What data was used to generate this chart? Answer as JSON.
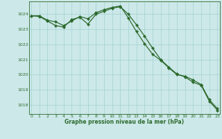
{
  "line1_x": [
    0,
    1,
    2,
    3,
    4,
    5,
    6,
    7,
    8,
    9,
    10,
    11,
    12,
    13,
    14,
    15,
    16,
    17,
    18,
    19,
    20,
    21,
    22,
    23
  ],
  "line1_y": [
    1023.9,
    1023.85,
    1023.55,
    1023.25,
    1023.15,
    1023.65,
    1023.8,
    1023.35,
    1024.0,
    1024.2,
    1024.4,
    1024.5,
    1024.0,
    1023.3,
    1022.55,
    1021.75,
    1021.0,
    1020.5,
    1020.05,
    1019.85,
    1019.5,
    1019.3,
    1018.25,
    1017.65
  ],
  "line2_x": [
    0,
    1,
    2,
    3,
    4,
    5,
    6,
    7,
    8,
    9,
    10,
    11,
    12,
    13,
    14,
    15,
    16,
    17,
    18,
    19,
    20,
    21,
    22,
    23
  ],
  "line2_y": [
    1023.9,
    1023.9,
    1023.6,
    1023.5,
    1023.25,
    1023.55,
    1023.85,
    1023.7,
    1024.1,
    1024.3,
    1024.45,
    1024.55,
    1023.75,
    1022.85,
    1022.05,
    1021.35,
    1020.95,
    1020.45,
    1020.0,
    1019.9,
    1019.65,
    1019.35,
    1018.35,
    1017.75
  ],
  "line_color": "#2d6a2d",
  "bg_color": "#cce8e8",
  "grid_color": "#99cccc",
  "ylabel_ticks": [
    1018,
    1019,
    1020,
    1021,
    1022,
    1023,
    1024
  ],
  "xlabel_ticks": [
    0,
    1,
    2,
    3,
    4,
    5,
    6,
    7,
    8,
    9,
    10,
    11,
    12,
    13,
    14,
    15,
    16,
    17,
    18,
    19,
    20,
    21,
    22,
    23
  ],
  "ylim": [
    1017.4,
    1024.85
  ],
  "xlim": [
    -0.3,
    23.3
  ],
  "xlabel": "Graphe pression niveau de la mer (hPa)",
  "marker": "D",
  "markersize": 2.2,
  "linewidth": 0.9
}
